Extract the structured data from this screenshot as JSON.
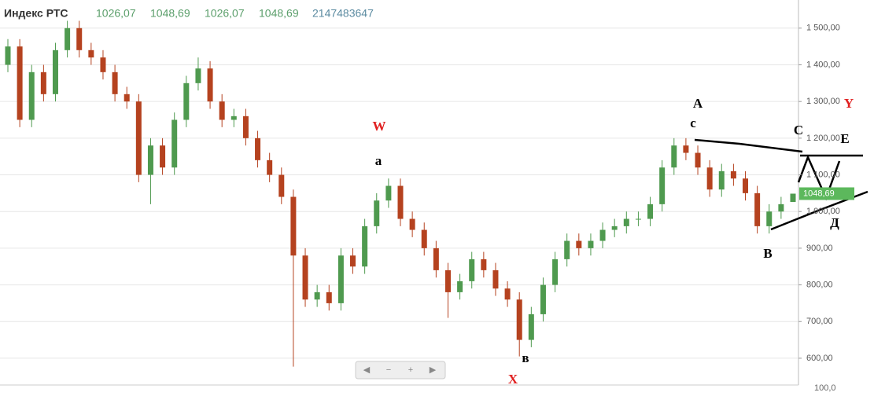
{
  "chart_data": {
    "type": "candlestick",
    "header": {
      "name": "Индекс РТС",
      "open": "1026,07",
      "high": "1048,69",
      "low": "1026,07",
      "close": "1048,69",
      "volume": "2147483647"
    },
    "up_color": "#4f9a4f",
    "down_color": "#b5421f",
    "ylim": [
      527,
      1566
    ],
    "yticks": [
      {
        "value": 600,
        "label": "600,00"
      },
      {
        "value": 700,
        "label": "700,00"
      },
      {
        "value": 800,
        "label": "800,00"
      },
      {
        "value": 900,
        "label": "900,00"
      },
      {
        "value": 1000,
        "label": "1 000,00"
      },
      {
        "value": 1100,
        "label": "1 100,00"
      },
      {
        "value": 1200,
        "label": "1 200,00"
      },
      {
        "value": 1300,
        "label": "1 300,00"
      },
      {
        "value": 1400,
        "label": "1 400,00"
      },
      {
        "value": 1500,
        "label": "1 500,00"
      }
    ],
    "grid": true,
    "volume_axis_label": "100,0",
    "open": [
      1400,
      1450,
      1250,
      1380,
      1320,
      1440,
      1500,
      1440,
      1420,
      1380,
      1320,
      1300,
      1100,
      1180,
      1120,
      1250,
      1350,
      1390,
      1300,
      1250,
      1260,
      1200,
      1140,
      1100,
      1040,
      880,
      760,
      780,
      750,
      880,
      850,
      960,
      1030,
      1070,
      980,
      950,
      900,
      840,
      780,
      810,
      870,
      840,
      790,
      760,
      650,
      720,
      800,
      870,
      920,
      900,
      920,
      950,
      960,
      980,
      980,
      1020,
      1120,
      1180,
      1160,
      1120,
      1060,
      1110,
      1090,
      1050,
      960,
      1000,
      1026.07
    ],
    "high": [
      1470,
      1470,
      1400,
      1400,
      1460,
      1520,
      1520,
      1460,
      1440,
      1400,
      1340,
      1320,
      1200,
      1200,
      1270,
      1370,
      1420,
      1410,
      1320,
      1280,
      1280,
      1220,
      1160,
      1120,
      1060,
      900,
      800,
      800,
      900,
      900,
      980,
      1050,
      1090,
      1090,
      1000,
      970,
      920,
      860,
      830,
      890,
      890,
      860,
      810,
      780,
      740,
      820,
      890,
      940,
      940,
      940,
      970,
      980,
      1000,
      1000,
      1040,
      1140,
      1200,
      1200,
      1180,
      1140,
      1130,
      1130,
      1110,
      1070,
      1020,
      1040,
      1048.69
    ],
    "low": [
      1380,
      1230,
      1230,
      1300,
      1300,
      1420,
      1420,
      1400,
      1360,
      1300,
      1280,
      1080,
      1020,
      1100,
      1100,
      1230,
      1330,
      1280,
      1230,
      1230,
      1180,
      1120,
      1080,
      1020,
      577,
      740,
      740,
      730,
      730,
      830,
      830,
      940,
      1010,
      960,
      930,
      880,
      820,
      710,
      760,
      790,
      820,
      770,
      740,
      605,
      630,
      700,
      780,
      850,
      880,
      880,
      900,
      930,
      940,
      960,
      960,
      1000,
      1100,
      1140,
      1100,
      1040,
      1040,
      1070,
      1030,
      940,
      940,
      980,
      1026.07
    ],
    "close": [
      1450,
      1250,
      1380,
      1320,
      1440,
      1500,
      1440,
      1420,
      1380,
      1320,
      1300,
      1100,
      1180,
      1120,
      1250,
      1350,
      1390,
      1300,
      1250,
      1260,
      1200,
      1140,
      1100,
      1040,
      880,
      760,
      780,
      750,
      880,
      850,
      960,
      1030,
      1070,
      980,
      950,
      900,
      840,
      780,
      810,
      870,
      840,
      790,
      760,
      650,
      720,
      800,
      870,
      920,
      900,
      920,
      950,
      960,
      980,
      980,
      1020,
      1120,
      1180,
      1160,
      1120,
      1060,
      1110,
      1090,
      1050,
      960,
      1000,
      1020,
      1048.69
    ],
    "annotations": [
      {
        "text": "W",
        "color": "#e02020"
      },
      {
        "text": "a",
        "color": "#000000"
      },
      {
        "text": "X",
        "color": "#e02020"
      },
      {
        "text": "в",
        "color": "#000000"
      },
      {
        "text": "A",
        "color": "#000000"
      },
      {
        "text": "c",
        "color": "#000000"
      },
      {
        "text": "Y",
        "color": "#e02020"
      },
      {
        "text": "C",
        "color": "#000000"
      },
      {
        "text": "E",
        "color": "#000000"
      },
      {
        "text": "Д",
        "color": "#000000"
      },
      {
        "text": "B",
        "color": "#000000"
      }
    ]
  }
}
